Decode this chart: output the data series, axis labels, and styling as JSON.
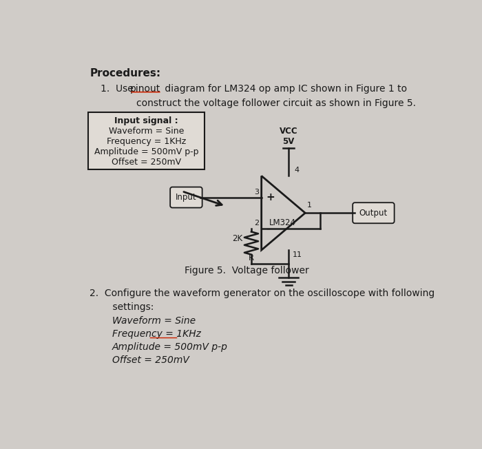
{
  "bg_color": "#d0ccc8",
  "text_color": "#1a1a1a",
  "line_color": "#1a1a1a",
  "box_bg": "#e0dbd5",
  "title": "Procedures:",
  "item1_pre": "1.  Use ",
  "item1_underlined": "pinout",
  "item1_post": " diagram for LM324 op amp IC shown in Figure 1 to",
  "item1_line2": "        construct the voltage follower circuit as shown in Figure 5.",
  "box_lines": [
    "Input signal :",
    "Waveform = Sine",
    "Frequency = 1KHz",
    "Amplitude = 500mV p-p",
    "Offset = 250mV"
  ],
  "box_bold": [
    true,
    false,
    false,
    false,
    false
  ],
  "figure_caption": "Figure 5.  Voltage follower",
  "item2_line1": "2.  Configure the waveform generator on the oscilloscope with following",
  "item2_line2": "    settings:",
  "settings_italic": [
    "Waveform = Sine",
    "Frequency = 1KHz",
    "Amplitude = 500mV p-p",
    "Offset = 250mV"
  ],
  "settings_underline": [
    false,
    true,
    false,
    false
  ],
  "underline_color": "#cc2200",
  "vcc_label": "VCC\n5V",
  "lm324_label": "LM324",
  "input_label": "Input",
  "output_label": "Output",
  "res_label_top": "2K",
  "res_label_bot": "R",
  "pin3": "3",
  "pin2": "2",
  "pin4": "4",
  "pin1": "1",
  "pin11": "11",
  "plus_sign": "+",
  "minus_sign": "-"
}
